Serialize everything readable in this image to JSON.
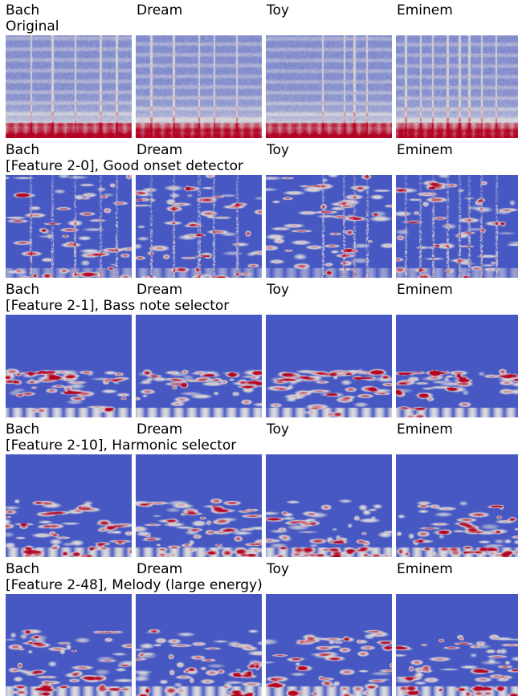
{
  "columns": [
    "Bach",
    "Dream",
    "Toy",
    "Eminem"
  ],
  "rows": [
    {
      "title": "Original",
      "kind": "original"
    },
    {
      "title": "[Feature 2-0], Good onset detector",
      "kind": "onset"
    },
    {
      "title": "[Feature 2-1], Bass note selector",
      "kind": "bass"
    },
    {
      "title": "[Feature 2-10], Harmonic selector",
      "kind": "harmonic"
    },
    {
      "title": "[Feature 2-48], Melody (large energy)",
      "kind": "melody"
    }
  ],
  "colors": {
    "low": "#3b4cc0",
    "mid": "#dddddd",
    "high": "#b40426"
  },
  "colormap": "coolwarm"
}
